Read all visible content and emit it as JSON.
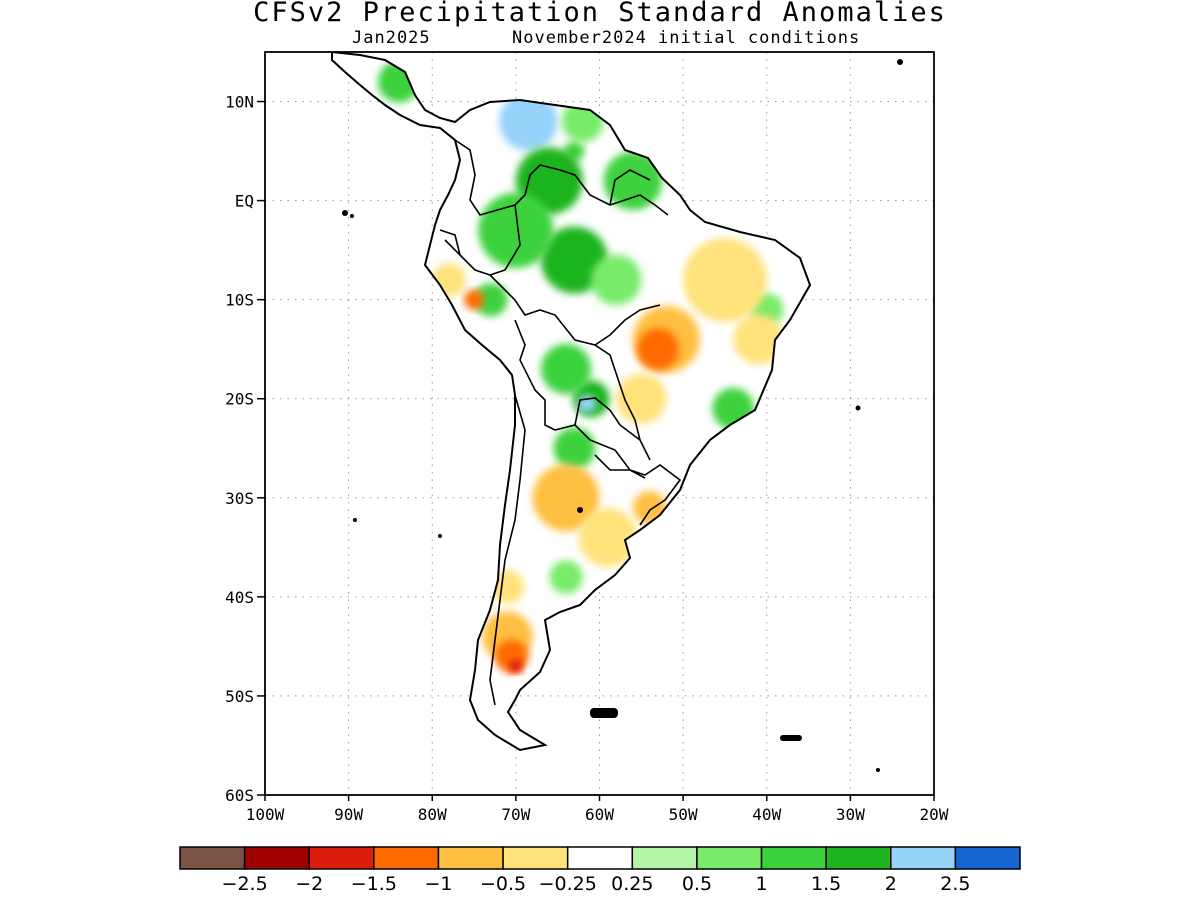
{
  "title": "CFSv2 Precipitation Standard Anomalies",
  "subtitle_month": "Jan2025",
  "subtitle_ic": "November2024 initial conditions",
  "map": {
    "lat_ticks": [
      {
        "lat": 10,
        "label": "10N"
      },
      {
        "lat": 0,
        "label": "EQ"
      },
      {
        "lat": -10,
        "label": "10S"
      },
      {
        "lat": -20,
        "label": "20S"
      },
      {
        "lat": -30,
        "label": "30S"
      },
      {
        "lat": -40,
        "label": "40S"
      },
      {
        "lat": -50,
        "label": "50S"
      },
      {
        "lat": -60,
        "label": "60S"
      }
    ],
    "lon_ticks": [
      {
        "lon": -100,
        "label": "100W"
      },
      {
        "lon": -90,
        "label": "90W"
      },
      {
        "lon": -80,
        "label": "80W"
      },
      {
        "lon": -70,
        "label": "70W"
      },
      {
        "lon": -60,
        "label": "60W"
      },
      {
        "lon": -50,
        "label": "50W"
      },
      {
        "lon": -40,
        "label": "40W"
      },
      {
        "lon": -30,
        "label": "30W"
      },
      {
        "lon": -20,
        "label": "20W"
      }
    ],
    "lon_range": [
      -100,
      -20
    ],
    "lat_range": [
      -60,
      15
    ],
    "grid": true
  },
  "colorbar": {
    "colors": [
      "#7a5246",
      "#a00000",
      "#dc1c0c",
      "#ff6a00",
      "#ffbf40",
      "#ffe27a",
      "#ffffff",
      "#b4f5a6",
      "#78eb6a",
      "#3cd23c",
      "#1eb41e",
      "#96d2fa",
      "#1464d2"
    ],
    "labels": [
      "−2.5",
      "−2",
      "−1.5",
      "−1",
      "−0.5",
      "−0.25",
      "0.25",
      "0.5",
      "1",
      "1.5",
      "2",
      "2.5"
    ]
  },
  "anomaly_blobs": [
    {
      "level": 2,
      "lon": -68.5,
      "lat": 8,
      "r": 3.5
    },
    {
      "level": 1,
      "lon": -63,
      "lat": 5,
      "r": 1.2
    },
    {
      "level": 0.5,
      "lon": -62,
      "lat": 8,
      "r": 2.5
    },
    {
      "level": 1,
      "lon": -84,
      "lat": 12,
      "r": 2.5
    },
    {
      "level": 1.5,
      "lon": -66,
      "lat": 2,
      "r": 4
    },
    {
      "level": 1.5,
      "lon": -63,
      "lat": -6,
      "r": 4
    },
    {
      "level": 1,
      "lon": -70,
      "lat": -3,
      "r": 4.5
    },
    {
      "level": 1,
      "lon": -56,
      "lat": 2,
      "r": 3.5
    },
    {
      "level": 0.5,
      "lon": -58,
      "lat": -8,
      "r": 3
    },
    {
      "level": 1,
      "lon": -73,
      "lat": -10,
      "r": 2
    },
    {
      "level": 1.5,
      "lon": -61,
      "lat": -20,
      "r": 2.2
    },
    {
      "level": 2,
      "lon": -61.5,
      "lat": -20.5,
      "r": 1.1
    },
    {
      "level": 1,
      "lon": -64,
      "lat": -17,
      "r": 3
    },
    {
      "level": 1,
      "lon": -63,
      "lat": -25,
      "r": 2.5
    },
    {
      "level": 1,
      "lon": -44,
      "lat": -21,
      "r": 2.5
    },
    {
      "level": 0.5,
      "lon": -40,
      "lat": -11,
      "r": 2
    },
    {
      "level": 0.5,
      "lon": -64,
      "lat": -38,
      "r": 2
    },
    {
      "level": -0.5,
      "lon": -45,
      "lat": -8,
      "r": 5
    },
    {
      "level": -1,
      "lon": -52,
      "lat": -14,
      "r": 4
    },
    {
      "level": -1.5,
      "lon": -53,
      "lat": -15,
      "r": 2.5
    },
    {
      "level": -0.5,
      "lon": -41,
      "lat": -14,
      "r": 3
    },
    {
      "level": -0.5,
      "lon": -55,
      "lat": -20,
      "r": 3
    },
    {
      "level": -0.5,
      "lon": -78,
      "lat": -8,
      "r": 2
    },
    {
      "level": -1.5,
      "lon": -75,
      "lat": -10,
      "r": 1.2
    },
    {
      "level": -1,
      "lon": -64,
      "lat": -30,
      "r": 4
    },
    {
      "level": -0.5,
      "lon": -59,
      "lat": -34,
      "r": 3.5
    },
    {
      "level": -1,
      "lon": -54,
      "lat": -31,
      "r": 2
    },
    {
      "level": -1,
      "lon": -71,
      "lat": -44,
      "r": 3
    },
    {
      "level": -1.5,
      "lon": -70.5,
      "lat": -46,
      "r": 2
    },
    {
      "level": -2,
      "lon": -70,
      "lat": -47,
      "r": 0.8
    },
    {
      "level": -0.5,
      "lon": -71,
      "lat": -39,
      "r": 2
    }
  ]
}
